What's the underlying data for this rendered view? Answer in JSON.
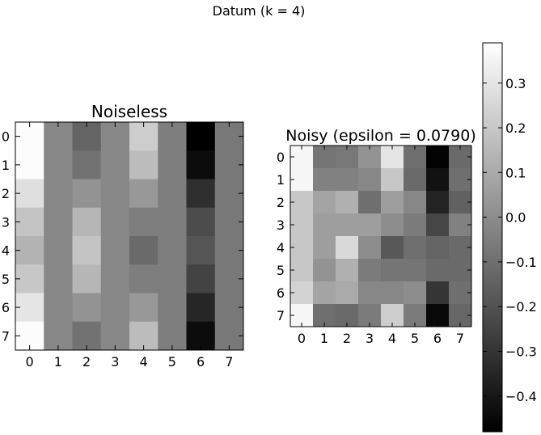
{
  "figure": {
    "suptitle": "Datum (k = 4)"
  },
  "chart_data": [
    {
      "type": "heatmap",
      "title": "Noiseless",
      "x": [
        0,
        1,
        2,
        3,
        4,
        5,
        6,
        7
      ],
      "y": [
        0,
        1,
        2,
        3,
        4,
        5,
        6,
        7
      ],
      "colormap": "gray",
      "vmin": -0.48,
      "vmax": 0.39,
      "values": [
        [
          0.38,
          -0.02,
          -0.14,
          -0.02,
          0.22,
          -0.05,
          -0.48,
          -0.07
        ],
        [
          0.38,
          -0.02,
          -0.09,
          -0.02,
          0.16,
          -0.05,
          -0.44,
          -0.07
        ],
        [
          0.28,
          -0.02,
          0.02,
          -0.02,
          0.04,
          -0.05,
          -0.32,
          -0.07
        ],
        [
          0.19,
          -0.02,
          0.14,
          -0.02,
          -0.05,
          -0.05,
          -0.22,
          -0.07
        ],
        [
          0.13,
          -0.02,
          0.19,
          -0.02,
          -0.12,
          -0.05,
          -0.19,
          -0.07
        ],
        [
          0.2,
          -0.02,
          0.14,
          -0.02,
          -0.05,
          -0.05,
          -0.25,
          -0.07
        ],
        [
          0.3,
          -0.02,
          0.02,
          -0.02,
          0.04,
          -0.05,
          -0.35,
          -0.07
        ],
        [
          0.38,
          -0.02,
          -0.09,
          -0.02,
          0.16,
          -0.05,
          -0.44,
          -0.07
        ]
      ]
    },
    {
      "type": "heatmap",
      "title": "Noisy (epsilon = 0.0790)",
      "x": [
        0,
        1,
        2,
        3,
        4,
        5,
        6,
        7
      ],
      "y": [
        0,
        1,
        2,
        3,
        4,
        5,
        6,
        7
      ],
      "colormap": "gray",
      "vmin": -0.48,
      "vmax": 0.39,
      "values": [
        [
          0.36,
          -0.08,
          -0.07,
          0.02,
          0.3,
          -0.1,
          -0.47,
          -0.12
        ],
        [
          0.36,
          -0.04,
          -0.04,
          -0.02,
          0.2,
          -0.12,
          -0.42,
          -0.1
        ],
        [
          0.2,
          0.08,
          0.12,
          -0.1,
          0.06,
          -0.02,
          -0.36,
          -0.15
        ],
        [
          0.2,
          0.06,
          0.06,
          0.06,
          0.0,
          -0.06,
          -0.24,
          -0.04
        ],
        [
          0.2,
          0.06,
          0.26,
          0.0,
          -0.18,
          -0.1,
          -0.14,
          -0.12
        ],
        [
          0.2,
          0.02,
          0.12,
          -0.06,
          -0.08,
          -0.08,
          -0.12,
          -0.12
        ],
        [
          0.24,
          0.08,
          0.1,
          -0.02,
          -0.02,
          0.0,
          -0.3,
          -0.1
        ],
        [
          0.36,
          -0.1,
          -0.12,
          -0.06,
          0.22,
          -0.06,
          -0.45,
          -0.13
        ]
      ]
    }
  ],
  "colorbar": {
    "ticks": [
      0.3,
      0.2,
      0.1,
      0.0,
      -0.1,
      -0.2,
      -0.3,
      -0.4
    ],
    "tick_labels": [
      "0.3",
      "0.2",
      "0.1",
      "0.0",
      "−0.1",
      "−0.2",
      "−0.3",
      "−0.4"
    ]
  }
}
